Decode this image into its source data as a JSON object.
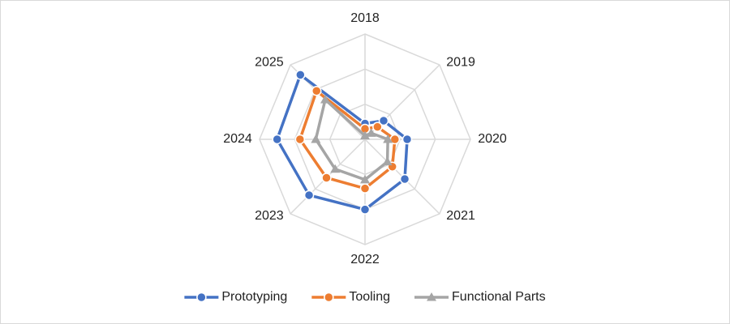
{
  "chart_data": {
    "type": "radar",
    "categories": [
      "2018",
      "2019",
      "2020",
      "2021",
      "2022",
      "2023",
      "2024",
      "2025"
    ],
    "rlim": [
      0,
      30
    ],
    "rticks": [
      0,
      10,
      20,
      30
    ],
    "grid": true,
    "legend": "bottom",
    "series": [
      {
        "name": "Prototyping",
        "color": "#4472c4",
        "marker": "circle",
        "values": [
          4.5,
          7.5,
          12,
          16,
          20,
          22.5,
          25,
          26
        ]
      },
      {
        "name": "Tooling",
        "color": "#ed7d31",
        "marker": "circle",
        "values": [
          3,
          5,
          8.5,
          11,
          14,
          15.5,
          18.5,
          19.5
        ]
      },
      {
        "name": "Functional Parts",
        "color": "#a5a5a5",
        "marker": "triangle",
        "values": [
          1,
          2.5,
          6.5,
          9,
          11.5,
          12,
          14,
          16
        ]
      }
    ]
  }
}
